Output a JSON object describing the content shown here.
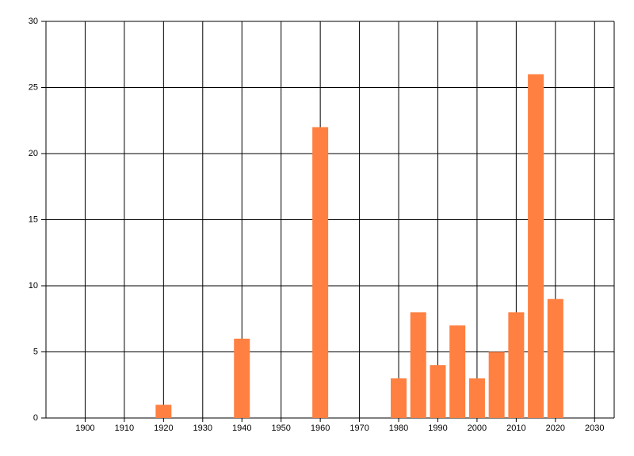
{
  "chart_data": {
    "type": "bar",
    "x": [
      1920,
      1940,
      1960,
      1980,
      1985,
      1990,
      1995,
      2000,
      2005,
      2010,
      2015,
      2020
    ],
    "values": [
      1,
      6,
      22,
      3,
      8,
      4,
      7,
      3,
      5,
      8,
      26,
      9
    ],
    "color": "#ff8040",
    "xlim": [
      1890,
      2035
    ],
    "xticks": [
      1900,
      1910,
      1920,
      1930,
      1940,
      1950,
      1960,
      1970,
      1980,
      1990,
      2000,
      2010,
      2020,
      2030
    ],
    "ylim": [
      0,
      30
    ],
    "yticks": [
      0,
      5,
      10,
      15,
      20,
      25,
      30
    ],
    "grid": true
  }
}
